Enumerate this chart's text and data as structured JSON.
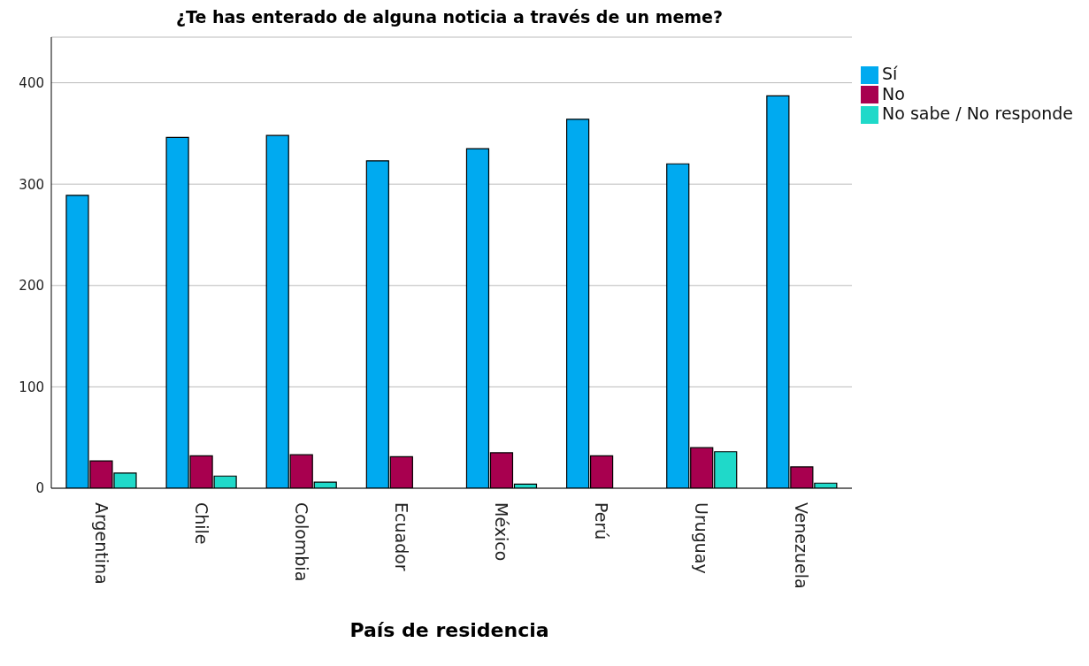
{
  "chart_data": {
    "type": "bar",
    "title": "¿Te has enterado de alguna noticia a través de un meme?",
    "xlabel": "País de residencia",
    "categories": [
      "Argentina",
      "Chile",
      "Colombia",
      "Ecuador",
      "México",
      "Perú",
      "Uruguay",
      "Venezuela"
    ],
    "series": [
      {
        "name": "Sí",
        "color": "#00aaf0",
        "values": [
          289,
          346,
          348,
          323,
          335,
          364,
          320,
          387
        ]
      },
      {
        "name": "No",
        "color": "#a8004f",
        "values": [
          27,
          32,
          33,
          31,
          35,
          32,
          40,
          21
        ]
      },
      {
        "name": "No sabe / No responde",
        "color": "#1fd9c9",
        "values": [
          15,
          12,
          6,
          0,
          4,
          0,
          36,
          5
        ]
      }
    ],
    "ylim": [
      0,
      445
    ],
    "yticks": [
      0,
      100,
      200,
      300,
      400
    ],
    "grid": "y",
    "legend": "top right"
  }
}
